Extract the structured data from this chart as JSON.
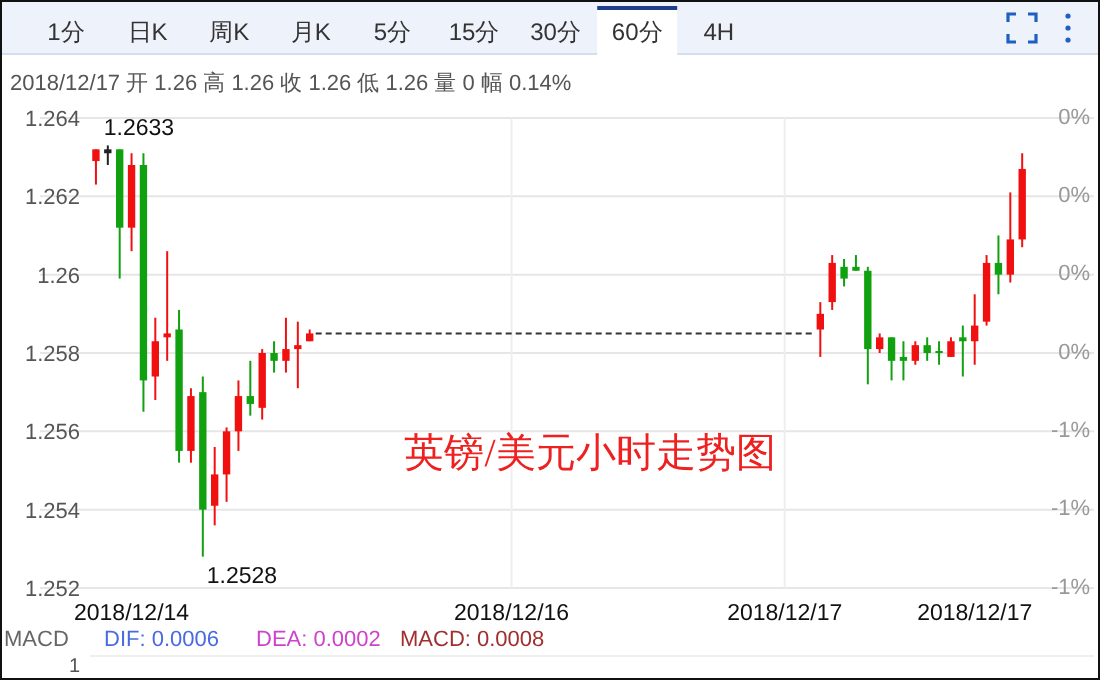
{
  "chart_data": {
    "type": "candlestick",
    "title": "英镑/美元小时走势图",
    "categories": [
      null,
      null,
      null,
      "2018/12/14",
      null,
      null,
      null,
      null,
      null,
      null,
      null,
      null,
      null,
      null,
      null,
      null,
      null,
      null,
      null,
      null,
      null,
      null,
      null,
      null,
      null,
      null,
      null,
      null,
      null,
      null,
      null,
      null,
      null,
      null,
      null,
      "2018/12/16",
      null,
      null,
      null,
      null,
      null,
      null,
      null,
      null,
      null,
      null,
      null,
      null,
      null,
      null,
      null,
      null,
      null,
      null,
      null,
      null,
      null,
      null,
      "2018/12/17",
      null,
      null,
      null,
      null,
      null,
      null,
      null,
      null,
      null,
      null,
      null,
      null,
      null,
      null,
      null,
      "2018/12/17",
      null,
      null,
      null,
      null,
      null
    ],
    "ohlc": [
      [
        1.2629,
        1.2632,
        1.2623,
        1.2632
      ],
      [
        1.2632,
        1.2633,
        1.2628,
        1.2631
      ],
      [
        1.2632,
        1.2632,
        1.2599,
        1.2612
      ],
      [
        1.2612,
        1.2631,
        1.2606,
        1.2628
      ],
      [
        1.2628,
        1.2631,
        1.2565,
        1.2573
      ],
      [
        1.2574,
        1.2589,
        1.2568,
        1.2583
      ],
      [
        1.2584,
        1.2606,
        1.2578,
        1.2585
      ],
      [
        1.2586,
        1.2591,
        1.2552,
        1.2555
      ],
      [
        1.2555,
        1.2571,
        1.2552,
        1.2569
      ],
      [
        1.257,
        1.2574,
        1.2528,
        1.254
      ],
      [
        1.2541,
        1.2556,
        1.2536,
        1.2549
      ],
      [
        1.2549,
        1.2561,
        1.2542,
        1.256
      ],
      [
        1.256,
        1.2573,
        1.2555,
        1.2569
      ],
      [
        1.2569,
        1.2578,
        1.2564,
        1.2567
      ],
      [
        1.2566,
        1.2581,
        1.2563,
        1.258
      ],
      [
        1.258,
        1.2583,
        1.2575,
        1.2578
      ],
      [
        1.2578,
        1.2589,
        1.2575,
        1.2581
      ],
      [
        1.2581,
        1.2588,
        1.2571,
        1.2582
      ],
      [
        1.2583,
        1.2586,
        1.2583,
        1.2585
      ],
      null,
      null,
      null,
      null,
      null,
      null,
      null,
      null,
      null,
      null,
      null,
      null,
      null,
      null,
      null,
      null,
      null,
      null,
      null,
      null,
      null,
      null,
      null,
      null,
      null,
      null,
      null,
      null,
      null,
      null,
      null,
      null,
      null,
      null,
      null,
      null,
      null,
      null,
      null,
      null,
      null,
      null,
      [
        1.2586,
        1.2593,
        1.2579,
        1.259
      ],
      [
        1.2593,
        1.2605,
        1.2591,
        1.2603
      ],
      [
        1.2602,
        1.2604,
        1.2597,
        1.2599
      ],
      [
        1.2602,
        1.2605,
        1.2601,
        1.2601
      ],
      [
        1.2601,
        1.2602,
        1.2572,
        1.2581
      ],
      [
        1.2581,
        1.2585,
        1.258,
        1.2584
      ],
      [
        1.2584,
        1.2584,
        1.2573,
        1.2578
      ],
      [
        1.2579,
        1.2583,
        1.2573,
        1.2578
      ],
      [
        1.2578,
        1.2583,
        1.2577,
        1.2582
      ],
      [
        1.2582,
        1.2584,
        1.2578,
        1.258
      ],
      [
        1.25805,
        1.2583,
        1.2577,
        1.258
      ],
      [
        1.2579,
        1.2584,
        1.2579,
        1.2583
      ],
      [
        1.2584,
        1.2587,
        1.2574,
        1.2583
      ],
      [
        1.2583,
        1.2595,
        1.2577,
        1.2587
      ],
      [
        1.2588,
        1.2605,
        1.2587,
        1.2603
      ],
      [
        1.2603,
        1.261,
        1.2595,
        1.26
      ],
      [
        1.26,
        1.2621,
        1.2598,
        1.2609
      ],
      [
        1.2609,
        1.2631,
        1.2607,
        1.2627
      ],
      null
    ],
    "colors": [
      "#f01010",
      "#222222",
      "#10a010",
      "#f01010",
      "#10a010",
      "#f01010",
      "#f01010",
      "#10a010",
      "#f01010",
      "#10a010",
      "#f01010",
      "#f01010",
      "#f01010",
      "#10a010",
      "#f01010",
      "#10a010",
      "#f01010",
      "#f01010",
      "#f01010",
      null,
      null,
      null,
      null,
      null,
      null,
      null,
      null,
      null,
      null,
      null,
      null,
      null,
      null,
      null,
      null,
      null,
      null,
      null,
      null,
      null,
      null,
      null,
      null,
      null,
      null,
      null,
      null,
      null,
      null,
      null,
      null,
      null,
      null,
      null,
      null,
      null,
      null,
      null,
      null,
      null,
      null,
      "#f01010",
      "#f01010",
      "#10a010",
      "#10a010",
      "#10a010",
      "#f01010",
      "#10a010",
      "#10a010",
      "#f01010",
      "#10a010",
      "#10a010",
      "#f01010",
      "#10a010",
      "#f01010",
      "#f01010",
      "#10a010",
      "#f01010",
      "#f01010",
      null
    ],
    "ylim": [
      1.252,
      1.264
    ],
    "yticks": [
      1.264,
      1.262,
      1.26,
      1.258,
      1.256,
      1.254,
      1.252
    ],
    "y2lim": [
      -1.17,
      0.27
    ],
    "y2ticks": [
      {
        "value": 0.27,
        "label": "0%"
      },
      {
        "value": 0.03,
        "label": "0%"
      },
      {
        "value": -0.21,
        "label": "0%"
      },
      {
        "value": -0.45,
        "label": "0%"
      },
      {
        "value": -0.69,
        "label": "-1%"
      },
      {
        "value": -0.93,
        "label": "-1%"
      },
      {
        "value": -1.17,
        "label": "-1%"
      }
    ],
    "grid": true,
    "ref_lines": [
      {
        "axis": "y",
        "value": 1.2585,
        "line_style": "dashed",
        "color": "#333333"
      }
    ],
    "annotations": [
      "1分",
      "日K",
      "周K",
      "月K",
      "5分",
      "15分",
      "30分",
      "60分",
      "4H",
      "2018/12/17 开 1.26 高 1.26 收 1.26 低 1.26 量 0 幅 0.14%",
      "1.2633",
      "1.2528",
      "MACD",
      "DIF: 0.0006",
      "DEA: 0.0002",
      "MACD: 0.0008",
      "1"
    ]
  }
}
